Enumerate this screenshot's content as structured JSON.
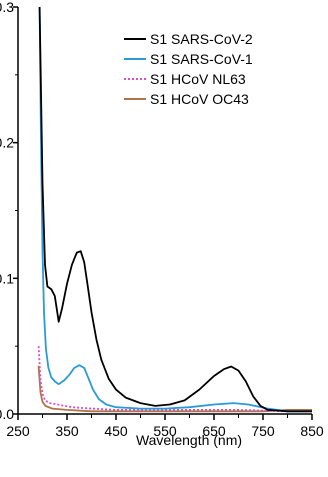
{
  "chart_data": {
    "type": "line",
    "title": "",
    "xlabel": "Wavelength (nm)",
    "ylabel": "",
    "xlim": [
      250,
      850
    ],
    "ylim": [
      0,
      0.3
    ],
    "x_ticks": [
      250,
      350,
      450,
      550,
      650,
      750,
      850
    ],
    "x_tick_labels": [
      "250",
      "350",
      "450",
      "550",
      "650",
      "750",
      "850"
    ],
    "y_ticks": [
      0.0,
      0.1,
      0.2,
      0.3
    ],
    "y_tick_labels": [
      "0.0",
      "0.1",
      "0.2",
      "0.3"
    ],
    "grid": false,
    "legend_position": "top-right",
    "series": [
      {
        "name": "S1 SARS-CoV-2",
        "color": "#000000",
        "style": "solid",
        "points": [
          [
            294,
            0.3
          ],
          [
            300,
            0.17
          ],
          [
            305,
            0.11
          ],
          [
            310,
            0.094
          ],
          [
            318,
            0.092
          ],
          [
            325,
            0.087
          ],
          [
            333,
            0.068
          ],
          [
            340,
            0.078
          ],
          [
            350,
            0.096
          ],
          [
            360,
            0.11
          ],
          [
            370,
            0.119
          ],
          [
            378,
            0.12
          ],
          [
            385,
            0.112
          ],
          [
            392,
            0.095
          ],
          [
            400,
            0.075
          ],
          [
            410,
            0.055
          ],
          [
            420,
            0.04
          ],
          [
            435,
            0.026
          ],
          [
            450,
            0.018
          ],
          [
            470,
            0.012
          ],
          [
            500,
            0.008
          ],
          [
            530,
            0.006
          ],
          [
            560,
            0.007
          ],
          [
            590,
            0.01
          ],
          [
            620,
            0.018
          ],
          [
            650,
            0.028
          ],
          [
            670,
            0.033
          ],
          [
            685,
            0.035
          ],
          [
            700,
            0.032
          ],
          [
            715,
            0.024
          ],
          [
            730,
            0.013
          ],
          [
            745,
            0.006
          ],
          [
            760,
            0.003
          ],
          [
            800,
            0.002
          ],
          [
            850,
            0.002
          ]
        ]
      },
      {
        "name": "S1 SARS-CoV-1",
        "color": "#2a9ad8",
        "style": "solid",
        "points": [
          [
            294,
            0.3
          ],
          [
            297,
            0.2
          ],
          [
            300,
            0.12
          ],
          [
            303,
            0.075
          ],
          [
            307,
            0.048
          ],
          [
            312,
            0.034
          ],
          [
            318,
            0.027
          ],
          [
            325,
            0.024
          ],
          [
            333,
            0.022
          ],
          [
            345,
            0.025
          ],
          [
            355,
            0.029
          ],
          [
            365,
            0.034
          ],
          [
            375,
            0.036
          ],
          [
            385,
            0.034
          ],
          [
            393,
            0.027
          ],
          [
            403,
            0.018
          ],
          [
            415,
            0.011
          ],
          [
            430,
            0.007
          ],
          [
            450,
            0.005
          ],
          [
            500,
            0.004
          ],
          [
            550,
            0.004
          ],
          [
            600,
            0.005
          ],
          [
            650,
            0.007
          ],
          [
            690,
            0.008
          ],
          [
            720,
            0.007
          ],
          [
            760,
            0.004
          ],
          [
            800,
            0.002
          ],
          [
            850,
            0.002
          ]
        ]
      },
      {
        "name": "S1 HCoV NL63",
        "color": "#d54fd5",
        "style": "dotted",
        "points": [
          [
            292,
            0.05
          ],
          [
            296,
            0.025
          ],
          [
            300,
            0.015
          ],
          [
            305,
            0.01
          ],
          [
            315,
            0.008
          ],
          [
            330,
            0.007
          ],
          [
            360,
            0.005
          ],
          [
            400,
            0.004
          ],
          [
            450,
            0.003
          ],
          [
            500,
            0.003
          ],
          [
            600,
            0.003
          ],
          [
            700,
            0.003
          ],
          [
            800,
            0.002
          ],
          [
            850,
            0.002
          ]
        ]
      },
      {
        "name": "S1 HCoV OC43",
        "color": "#ae7648",
        "style": "solid",
        "points": [
          [
            292,
            0.035
          ],
          [
            296,
            0.016
          ],
          [
            300,
            0.009
          ],
          [
            306,
            0.006
          ],
          [
            320,
            0.004
          ],
          [
            350,
            0.003
          ],
          [
            400,
            0.002
          ],
          [
            450,
            0.002
          ],
          [
            550,
            0.002
          ],
          [
            650,
            0.002
          ],
          [
            750,
            0.002
          ],
          [
            800,
            0.003
          ],
          [
            850,
            0.003
          ]
        ]
      }
    ]
  }
}
